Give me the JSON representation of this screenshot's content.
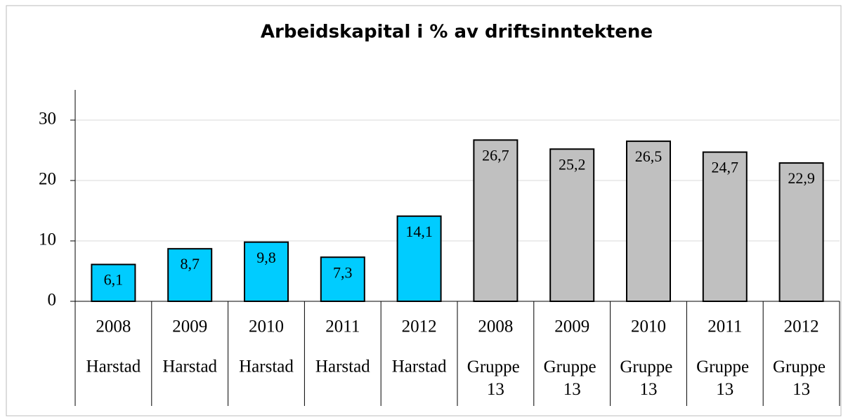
{
  "chart_data": {
    "type": "bar",
    "title": "Arbeidskapital i % av driftsinntektene",
    "categories": [
      "2008",
      "2009",
      "2010",
      "2011",
      "2012",
      "2008",
      "2009",
      "2010",
      "2011",
      "2012"
    ],
    "groups": [
      "Harstad",
      "Harstad",
      "Harstad",
      "Harstad",
      "Harstad",
      "Gruppe 13",
      "Gruppe 13",
      "Gruppe 13",
      "Gruppe 13",
      "Gruppe 13"
    ],
    "values": [
      6.1,
      8.7,
      9.8,
      7.3,
      14.1,
      26.7,
      25.2,
      26.5,
      24.7,
      22.9
    ],
    "value_labels": [
      "6,1",
      "8,7",
      "9,8",
      "7,3",
      "14,1",
      "26,7",
      "25,2",
      "26,5",
      "24,7",
      "22,9"
    ],
    "colors": [
      "#00ccff",
      "#00ccff",
      "#00ccff",
      "#00ccff",
      "#00ccff",
      "#c0c0c0",
      "#c0c0c0",
      "#c0c0c0",
      "#c0c0c0",
      "#c0c0c0"
    ],
    "ylim": [
      0,
      35
    ],
    "yticks": [
      0,
      10,
      20,
      30
    ],
    "grid": true
  }
}
